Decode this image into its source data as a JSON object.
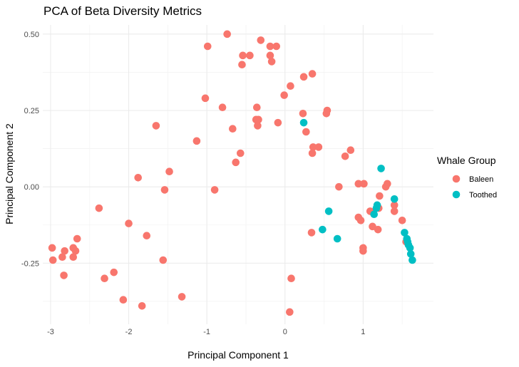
{
  "chart_data": {
    "type": "scatter",
    "title": "PCA of Beta Diversity Metrics",
    "xlabel": "Principal Component 1",
    "ylabel": "Principal Component 2",
    "xlim": [
      -3.1,
      1.9
    ],
    "ylim": [
      -0.45,
      0.53
    ],
    "xticks": [
      -3,
      -2,
      -1,
      0,
      1
    ],
    "xtick_labels": [
      "-3",
      "-2",
      "-1",
      "0",
      "1"
    ],
    "yticks": [
      -0.25,
      0,
      0.25,
      0.5
    ],
    "ytick_labels": [
      "-0.25",
      "0.00",
      "0.25",
      "0.50"
    ],
    "grid": true,
    "legend": {
      "title": "Whale Group",
      "position": "right"
    },
    "series": [
      {
        "name": "Baleen",
        "color": "#F8766D",
        "points": [
          [
            -0.74,
            0.5
          ],
          [
            -0.31,
            0.48
          ],
          [
            -0.99,
            0.46
          ],
          [
            -0.19,
            0.46
          ],
          [
            -0.11,
            0.46
          ],
          [
            -0.54,
            0.43
          ],
          [
            -0.45,
            0.43
          ],
          [
            -0.19,
            0.43
          ],
          [
            -0.17,
            0.41
          ],
          [
            -0.55,
            0.4
          ],
          [
            0.35,
            0.37
          ],
          [
            0.24,
            0.36
          ],
          [
            0.07,
            0.33
          ],
          [
            -0.01,
            0.3
          ],
          [
            -1.02,
            0.29
          ],
          [
            -0.8,
            0.26
          ],
          [
            -0.36,
            0.26
          ],
          [
            0.54,
            0.25
          ],
          [
            0.53,
            0.24
          ],
          [
            0.23,
            0.24
          ],
          [
            -0.37,
            0.22
          ],
          [
            -0.34,
            0.22
          ],
          [
            -0.35,
            0.2
          ],
          [
            -0.09,
            0.21
          ],
          [
            -1.65,
            0.2
          ],
          [
            -0.67,
            0.19
          ],
          [
            0.27,
            0.18
          ],
          [
            -1.13,
            0.15
          ],
          [
            0.36,
            0.13
          ],
          [
            0.43,
            0.13
          ],
          [
            0.84,
            0.12
          ],
          [
            0.35,
            0.11
          ],
          [
            -0.57,
            0.11
          ],
          [
            0.77,
            0.1
          ],
          [
            -0.63,
            0.08
          ],
          [
            -1.48,
            0.05
          ],
          [
            -1.88,
            0.03
          ],
          [
            1.01,
            0.01
          ],
          [
            0.94,
            0.01
          ],
          [
            1.31,
            0.01
          ],
          [
            1.29,
            0.0
          ],
          [
            0.69,
            0.0
          ],
          [
            -1.54,
            -0.01
          ],
          [
            -0.9,
            -0.01
          ],
          [
            1.21,
            -0.03
          ],
          [
            1.09,
            -0.08
          ],
          [
            1.2,
            -0.07
          ],
          [
            1.4,
            -0.06
          ],
          [
            1.4,
            -0.08
          ],
          [
            0.94,
            -0.1
          ],
          [
            0.97,
            -0.11
          ],
          [
            1.5,
            -0.11
          ],
          [
            1.12,
            -0.13
          ],
          [
            1.19,
            -0.14
          ],
          [
            0.34,
            -0.15
          ],
          [
            -2.38,
            -0.07
          ],
          [
            -2.0,
            -0.12
          ],
          [
            -1.77,
            -0.16
          ],
          [
            -2.66,
            -0.17
          ],
          [
            -2.98,
            -0.2
          ],
          [
            -2.82,
            -0.21
          ],
          [
            -2.71,
            -0.2
          ],
          [
            -2.68,
            -0.21
          ],
          [
            -2.97,
            -0.24
          ],
          [
            -2.85,
            -0.23
          ],
          [
            -2.71,
            -0.23
          ],
          [
            -1.56,
            -0.24
          ],
          [
            1.0,
            -0.2
          ],
          [
            1.0,
            -0.21
          ],
          [
            1.55,
            -0.18
          ],
          [
            -2.19,
            -0.28
          ],
          [
            -2.31,
            -0.3
          ],
          [
            -2.83,
            -0.29
          ],
          [
            0.08,
            -0.3
          ],
          [
            -1.32,
            -0.36
          ],
          [
            -2.07,
            -0.37
          ],
          [
            -1.83,
            -0.39
          ],
          [
            0.06,
            -0.41
          ]
        ]
      },
      {
        "name": "Toothed",
        "color": "#00BFC4",
        "points": [
          [
            0.24,
            0.21
          ],
          [
            1.23,
            0.06
          ],
          [
            1.4,
            -0.04
          ],
          [
            1.18,
            -0.06
          ],
          [
            1.17,
            -0.07
          ],
          [
            0.56,
            -0.08
          ],
          [
            1.14,
            -0.09
          ],
          [
            0.48,
            -0.14
          ],
          [
            0.67,
            -0.17
          ],
          [
            1.53,
            -0.15
          ],
          [
            1.56,
            -0.17
          ],
          [
            1.57,
            -0.18
          ],
          [
            1.58,
            -0.19
          ],
          [
            1.6,
            -0.2
          ],
          [
            1.61,
            -0.22
          ],
          [
            1.63,
            -0.24
          ]
        ]
      }
    ]
  }
}
